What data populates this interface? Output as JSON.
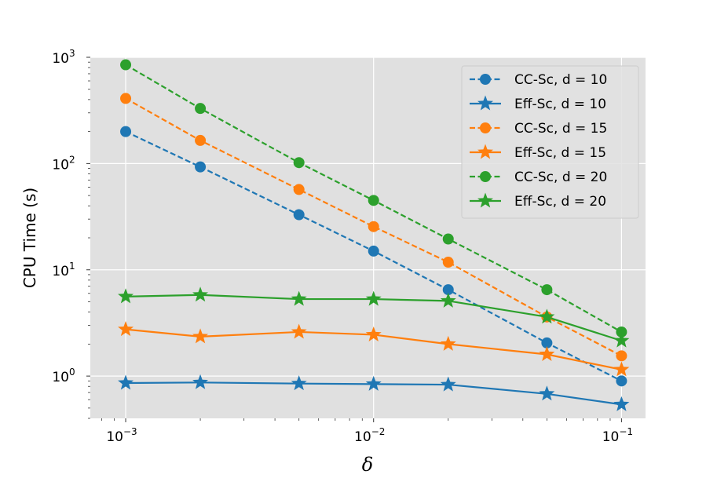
{
  "chart_data": {
    "type": "line",
    "xlabel": "δ",
    "ylabel": "CPU Time (s)",
    "xscale": "log",
    "yscale": "log",
    "xlim": [
      0.00072,
      0.125
    ],
    "ylim": [
      0.4,
      1000
    ],
    "grid": true,
    "legend_position": "top-right",
    "x": [
      0.001,
      0.002,
      0.005,
      0.01,
      0.02,
      0.05,
      0.1
    ],
    "xticks": [
      {
        "value": 0.001,
        "base": "10",
        "exp": "−3"
      },
      {
        "value": 0.01,
        "base": "10",
        "exp": "−2"
      },
      {
        "value": 0.1,
        "base": "10",
        "exp": "−1"
      }
    ],
    "yticks": [
      {
        "value": 1,
        "base": "10",
        "exp": "0"
      },
      {
        "value": 10,
        "base": "10",
        "exp": "1"
      },
      {
        "value": 100,
        "base": "10",
        "exp": "2"
      },
      {
        "value": 1000,
        "base": "10",
        "exp": "3"
      }
    ],
    "series": [
      {
        "name": "CC-Sc, d = 10",
        "color": "#1f77b4",
        "style": "dashed",
        "marker": "circle",
        "values": [
          200,
          93,
          33,
          15,
          6.5,
          2.05,
          0.9
        ]
      },
      {
        "name": "Eff-Sc, d = 10",
        "color": "#1f77b4",
        "style": "solid",
        "marker": "star",
        "values": [
          0.86,
          0.87,
          0.85,
          0.84,
          0.83,
          0.68,
          0.54
        ]
      },
      {
        "name": "CC-Sc, d = 15",
        "color": "#ff7f0e",
        "style": "dashed",
        "marker": "circle",
        "values": [
          410,
          165,
          57,
          25.5,
          11.8,
          3.6,
          1.55
        ]
      },
      {
        "name": "Eff-Sc, d = 15",
        "color": "#ff7f0e",
        "style": "solid",
        "marker": "star",
        "values": [
          2.75,
          2.35,
          2.6,
          2.45,
          2.0,
          1.6,
          1.15
        ]
      },
      {
        "name": "CC-Sc, d = 20",
        "color": "#2ca02c",
        "style": "dashed",
        "marker": "circle",
        "values": [
          850,
          330,
          102,
          45,
          19.5,
          6.5,
          2.6
        ]
      },
      {
        "name": "Eff-Sc, d = 20",
        "color": "#2ca02c",
        "style": "solid",
        "marker": "star",
        "values": [
          5.6,
          5.8,
          5.3,
          5.3,
          5.1,
          3.6,
          2.15
        ]
      }
    ]
  }
}
